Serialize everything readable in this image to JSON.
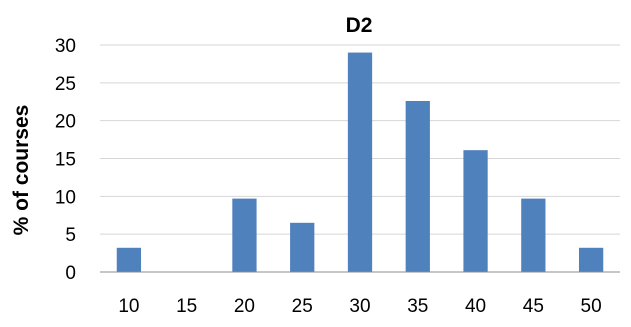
{
  "chart_data": {
    "type": "bar",
    "title": "D2",
    "xlabel": "",
    "ylabel": "% of courses",
    "categories": [
      "10",
      "15",
      "20",
      "25",
      "30",
      "35",
      "40",
      "45",
      "50"
    ],
    "values": [
      3.2,
      0,
      9.7,
      6.5,
      29,
      22.6,
      16.1,
      9.7,
      3.2
    ],
    "ylim": [
      0,
      30
    ],
    "yticks": [
      0,
      5,
      10,
      15,
      20,
      25,
      30
    ],
    "grid": true,
    "legend": "none",
    "colors": {
      "bar": "#4f81bd",
      "grid": "#d6d6d6",
      "axis": "#8c8c8c"
    }
  }
}
